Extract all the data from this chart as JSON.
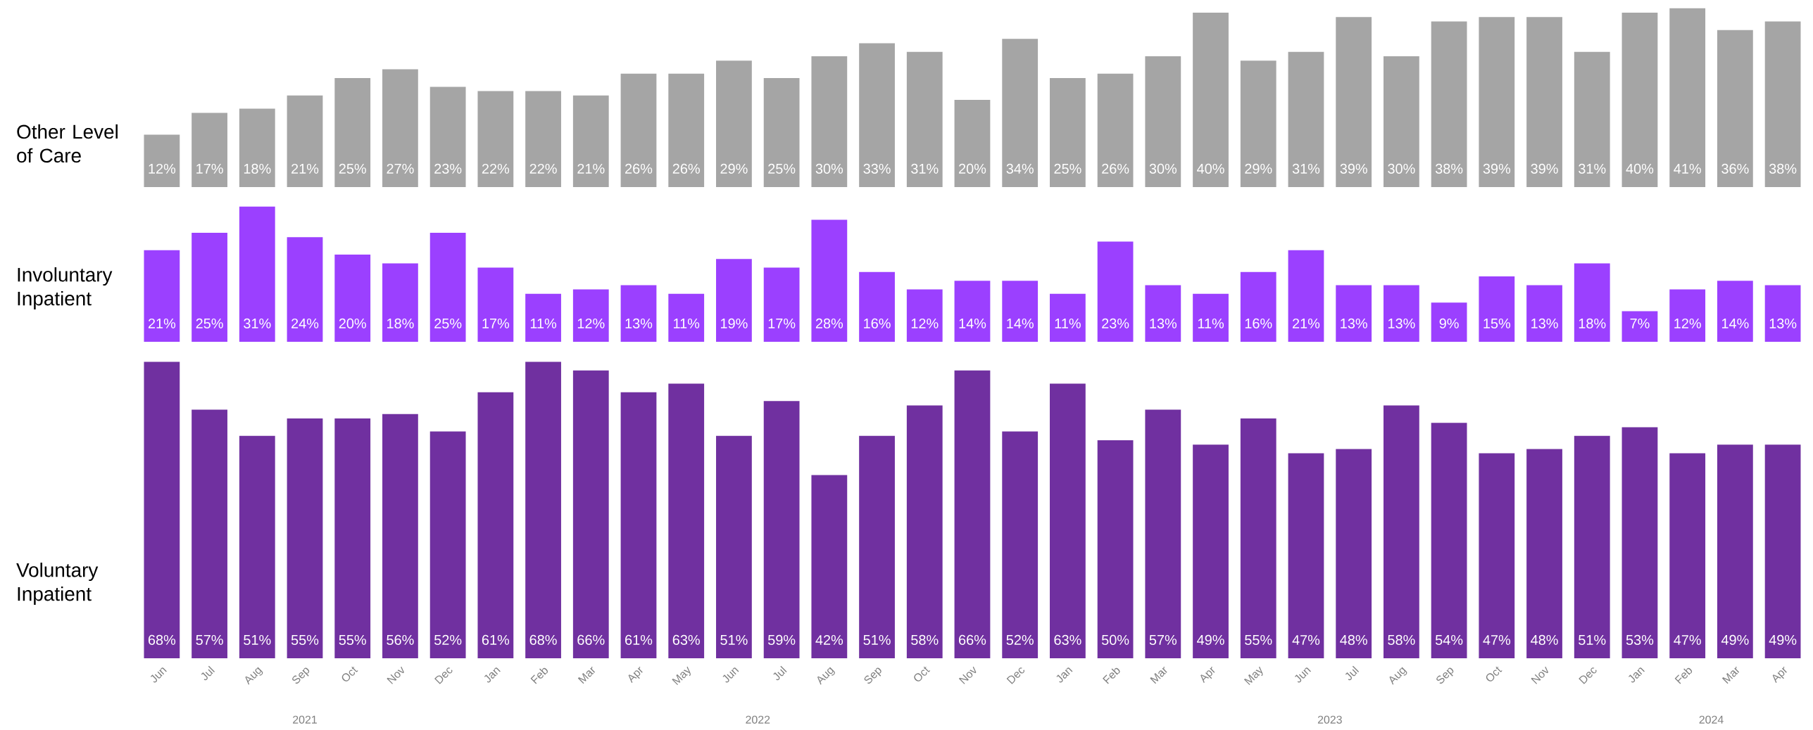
{
  "chart_data": [
    {
      "type": "bar",
      "ylabel": "Other Level of Care",
      "color": "#a5a5a5",
      "tick_labels": false,
      "values": [
        12,
        17,
        18,
        21,
        25,
        27,
        23,
        22,
        22,
        21,
        26,
        26,
        29,
        25,
        30,
        33,
        31,
        20,
        34,
        25,
        26,
        30,
        40,
        29,
        31,
        39,
        30,
        38,
        39,
        39,
        31,
        40,
        41,
        36,
        38
      ],
      "value_labels": [
        "12%",
        "17%",
        "18%",
        "21%",
        "25%",
        "27%",
        "23%",
        "22%",
        "22%",
        "21%",
        "26%",
        "26%",
        "29%",
        "25%",
        "30%",
        "33%",
        "31%",
        "20%",
        "34%",
        "25%",
        "26%",
        "30%",
        "40%",
        "29%",
        "31%",
        "39%",
        "30%",
        "38%",
        "39%",
        "39%",
        "31%",
        "40%",
        "41%",
        "36%",
        "38%"
      ]
    },
    {
      "type": "bar",
      "ylabel": "Involuntary Inpatient",
      "color": "#9b40ff",
      "tick_labels": false,
      "values": [
        21,
        25,
        31,
        24,
        20,
        18,
        25,
        17,
        11,
        12,
        13,
        11,
        19,
        17,
        28,
        16,
        12,
        14,
        14,
        11,
        23,
        13,
        11,
        16,
        21,
        13,
        13,
        9,
        15,
        13,
        18,
        7,
        12,
        14,
        13
      ],
      "value_labels": [
        "21%",
        "25%",
        "31%",
        "24%",
        "20%",
        "18%",
        "25%",
        "17%",
        "11%",
        "12%",
        "13%",
        "11%",
        "19%",
        "17%",
        "28%",
        "16%",
        "12%",
        "14%",
        "14%",
        "11%",
        "23%",
        "13%",
        "11%",
        "16%",
        "21%",
        "13%",
        "13%",
        "9%",
        "15%",
        "13%",
        "18%",
        "7%",
        "12%",
        "14%",
        "13%"
      ]
    },
    {
      "type": "bar",
      "ylabel": "Voluntary Inpatient",
      "color": "#7030a0",
      "tick_labels": "x",
      "categories": [
        "Jun",
        "Jul",
        "Aug",
        "Sep",
        "Oct",
        "Nov",
        "Dec",
        "Jan",
        "Feb",
        "Mar",
        "Apr",
        "May",
        "Jun",
        "Jul",
        "Aug",
        "Sep",
        "Oct",
        "Nov",
        "Dec",
        "Jan",
        "Feb",
        "Mar",
        "Apr",
        "May",
        "Jun",
        "Jul",
        "Aug",
        "Sep",
        "Oct",
        "Nov",
        "Dec",
        "Jan",
        "Feb",
        "Mar",
        "Apr"
      ],
      "values": [
        68,
        57,
        51,
        55,
        55,
        56,
        52,
        61,
        68,
        66,
        61,
        63,
        51,
        59,
        42,
        51,
        58,
        66,
        52,
        63,
        50,
        57,
        49,
        55,
        47,
        48,
        58,
        54,
        47,
        48,
        51,
        53,
        47,
        49,
        49
      ],
      "value_labels": [
        "68%",
        "57%",
        "51%",
        "55%",
        "55%",
        "56%",
        "52%",
        "61%",
        "68%",
        "66%",
        "61%",
        "63%",
        "51%",
        "59%",
        "42%",
        "51%",
        "58%",
        "66%",
        "52%",
        "63%",
        "50%",
        "57%",
        "49%",
        "55%",
        "47%",
        "48%",
        "58%",
        "54%",
        "47%",
        "48%",
        "51%",
        "53%",
        "47%",
        "49%",
        "49%"
      ],
      "annotations": [
        "2021",
        "2022",
        "2023",
        "2024"
      ]
    }
  ]
}
